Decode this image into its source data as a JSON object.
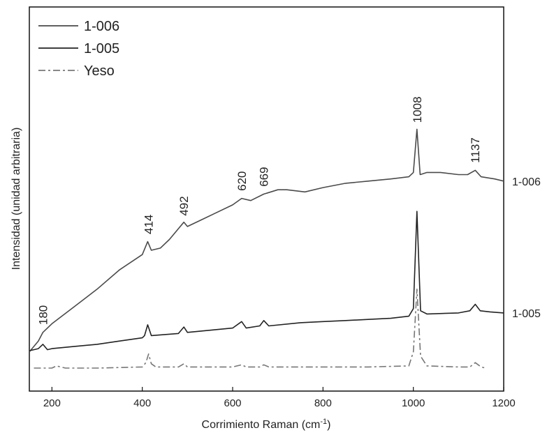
{
  "chart_data": {
    "type": "line",
    "xlabel": "Corrimiento Raman (cm",
    "xlabel_sup": "-1",
    "xlabel_close": ")",
    "ylabel": "Intensidad (unidad arbitraria)",
    "xlim": [
      150,
      1200
    ],
    "ylim": [
      0,
      10
    ],
    "x_ticks": [
      200,
      400,
      600,
      800,
      1000,
      1200
    ],
    "grid": false,
    "legend_position": "top-left",
    "series": [
      {
        "name": "1-006",
        "side_label": "1-006",
        "color": "#4a4a4a",
        "dash": "",
        "x": [
          150,
          170,
          180,
          200,
          250,
          300,
          350,
          400,
          412,
          420,
          440,
          460,
          480,
          492,
          500,
          530,
          560,
          600,
          620,
          640,
          669,
          700,
          720,
          760,
          800,
          850,
          900,
          950,
          990,
          1000,
          1008,
          1015,
          1030,
          1060,
          1100,
          1120,
          1137,
          1150,
          1180,
          1200
        ],
        "y": [
          1.3,
          1.8,
          2.2,
          2.6,
          3.4,
          4.2,
          5.1,
          5.8,
          6.4,
          6.0,
          6.1,
          6.5,
          7.0,
          7.3,
          7.1,
          7.4,
          7.7,
          8.1,
          8.4,
          8.3,
          8.6,
          8.8,
          8.8,
          8.7,
          8.9,
          9.1,
          9.2,
          9.3,
          9.4,
          9.6,
          11.6,
          9.5,
          9.6,
          9.6,
          9.5,
          9.5,
          9.7,
          9.4,
          9.3,
          9.2
        ]
      },
      {
        "name": "1-005",
        "side_label": "1-005",
        "color": "#222222",
        "dash": "",
        "x": [
          150,
          170,
          180,
          190,
          200,
          250,
          300,
          350,
          400,
          405,
          412,
          420,
          480,
          492,
          500,
          550,
          600,
          620,
          630,
          660,
          669,
          680,
          750,
          800,
          850,
          900,
          950,
          990,
          1000,
          1008,
          1016,
          1030,
          1100,
          1125,
          1137,
          1148,
          1170,
          1200
        ],
        "y": [
          1.35,
          1.45,
          1.65,
          1.4,
          1.45,
          1.55,
          1.65,
          1.8,
          1.95,
          2.05,
          2.55,
          2.05,
          2.15,
          2.45,
          2.2,
          2.3,
          2.4,
          2.7,
          2.4,
          2.5,
          2.75,
          2.5,
          2.65,
          2.7,
          2.75,
          2.8,
          2.85,
          2.95,
          3.3,
          7.8,
          3.2,
          3.05,
          3.1,
          3.2,
          3.5,
          3.2,
          3.15,
          3.1
        ]
      },
      {
        "name": "Yeso",
        "side_label": "",
        "color": "#777777",
        "dash": "10,4,3,4",
        "x": [
          160,
          200,
          210,
          230,
          300,
          400,
          408,
          414,
          420,
          430,
          480,
          492,
          500,
          550,
          600,
          620,
          630,
          660,
          669,
          680,
          750,
          800,
          900,
          990,
          1000,
          1008,
          1016,
          1030,
          1100,
          1125,
          1137,
          1150,
          1160
        ],
        "y": [
          0.55,
          0.55,
          0.65,
          0.55,
          0.55,
          0.6,
          0.8,
          1.2,
          0.75,
          0.6,
          0.6,
          0.75,
          0.6,
          0.6,
          0.6,
          0.7,
          0.6,
          0.6,
          0.7,
          0.6,
          0.6,
          0.6,
          0.6,
          0.65,
          1.3,
          4.2,
          1.1,
          0.65,
          0.6,
          0.6,
          0.8,
          0.6,
          0.55
        ]
      }
    ],
    "peak_labels": [
      {
        "text": "180",
        "x": 180,
        "y": 2.35
      },
      {
        "text": "414",
        "x": 414,
        "y": 6.55
      },
      {
        "text": "492",
        "x": 492,
        "y": 7.4
      },
      {
        "text": "620",
        "x": 620,
        "y": 8.55
      },
      {
        "text": "669",
        "x": 669,
        "y": 8.75
      },
      {
        "text": "1008",
        "x": 1008,
        "y": 11.7
      },
      {
        "text": "1137",
        "x": 1137,
        "y": 9.85
      }
    ]
  }
}
